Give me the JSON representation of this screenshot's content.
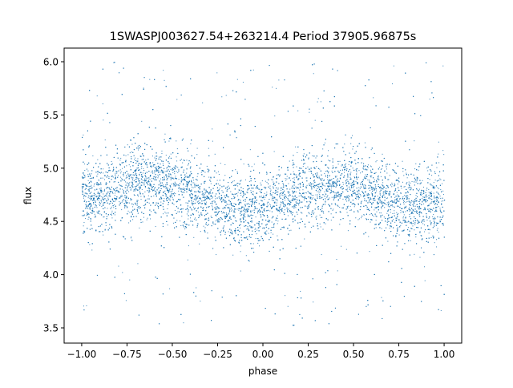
{
  "chart_data": {
    "type": "scatter",
    "title": "1SWASPJ003627.54+263214.4 Period 37905.96875s",
    "xlabel": "phase",
    "ylabel": "flux",
    "xlim": [
      -1.097,
      1.097
    ],
    "ylim": [
      3.357,
      6.128
    ],
    "xticks": [
      -1.0,
      -0.75,
      -0.5,
      -0.25,
      0.0,
      0.25,
      0.5,
      0.75,
      1.0
    ],
    "xtick_labels": [
      "−1.00",
      "−0.75",
      "−0.50",
      "−0.25",
      "0.00",
      "0.25",
      "0.50",
      "0.75",
      "1.00"
    ],
    "yticks": [
      3.5,
      4.0,
      4.5,
      5.0,
      5.5,
      6.0
    ],
    "ytick_labels": [
      "3.5",
      "4.0",
      "4.5",
      "5.0",
      "5.5",
      "6.0"
    ],
    "grid": false,
    "marker_color": "#1f77b4",
    "data_range": {
      "x": [
        -1.0,
        1.0
      ],
      "y": [
        3.5,
        6.0
      ]
    },
    "binned_trend": {
      "x": [
        -1.0,
        -0.9,
        -0.8,
        -0.7,
        -0.6,
        -0.5,
        -0.4,
        -0.3,
        -0.2,
        -0.1,
        0.0,
        0.1,
        0.2,
        0.3,
        0.4,
        0.5,
        0.6,
        0.7,
        0.8,
        0.9,
        1.0
      ],
      "y": [
        4.7,
        4.75,
        4.82,
        4.86,
        4.87,
        4.84,
        4.77,
        4.7,
        4.63,
        4.61,
        4.63,
        4.69,
        4.77,
        4.83,
        4.85,
        4.83,
        4.77,
        4.7,
        4.64,
        4.63,
        4.66
      ]
    },
    "typical_scatter": 0.17
  }
}
